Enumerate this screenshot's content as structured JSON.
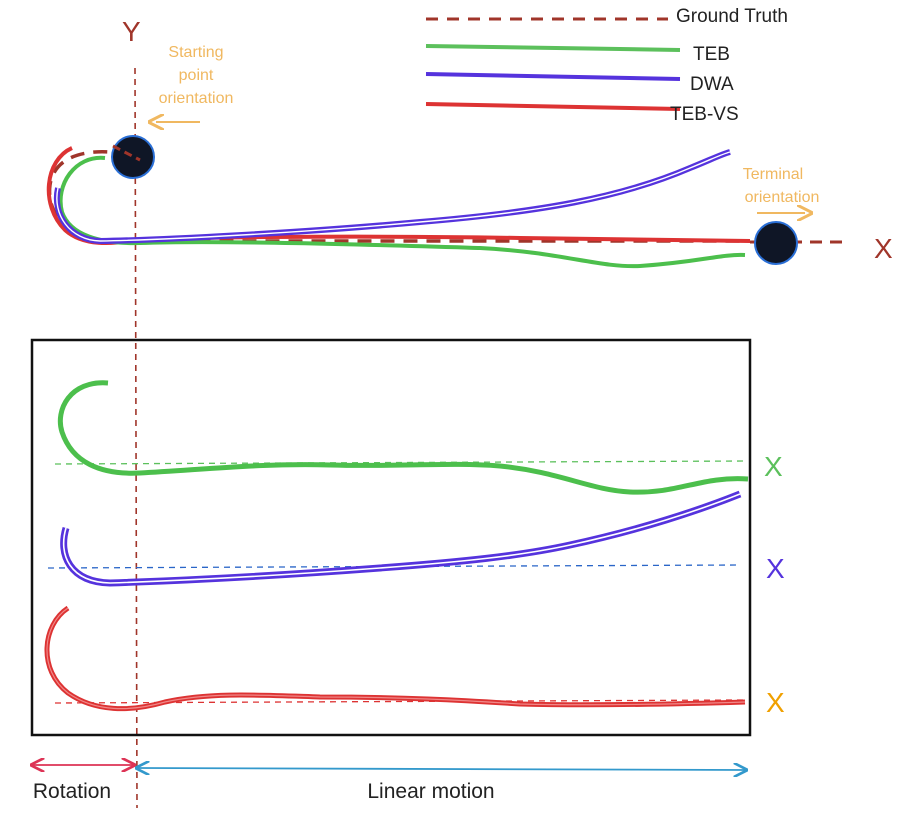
{
  "axis": {
    "y_label": "Y",
    "x_label": "X"
  },
  "legend": [
    {
      "label": "Ground Truth",
      "color": "#a0352a",
      "style": "dashed"
    },
    {
      "label": "TEB",
      "color": "#4cbf4c",
      "style": "solid"
    },
    {
      "label": "DWA",
      "color": "#5533dd",
      "style": "solid"
    },
    {
      "label": "TEB-VS",
      "color": "#dd3333",
      "style": "solid"
    }
  ],
  "annotations": {
    "start_orientation": [
      "Starting",
      "point",
      "orientation"
    ],
    "terminal_orientation": [
      "Terminal",
      "orientation"
    ]
  },
  "panel_x_labels": [
    {
      "text": "X",
      "color": "#5cc05c"
    },
    {
      "text": "X",
      "color": "#5533dd"
    },
    {
      "text": "X",
      "color": "#f0a000"
    }
  ],
  "phases": {
    "rotation": "Rotation",
    "linear": "Linear motion"
  },
  "colors": {
    "ground_truth": "#a0352a",
    "teb": "#4cbf4c",
    "dwa": "#5533dd",
    "teb_vs": "#dd3333",
    "annotation": "#f0b860",
    "rotation_arrow": "#dd3355",
    "linear_arrow": "#3399cc",
    "robot_fill": "#0f1626",
    "robot_stroke": "#2a6fd6"
  }
}
